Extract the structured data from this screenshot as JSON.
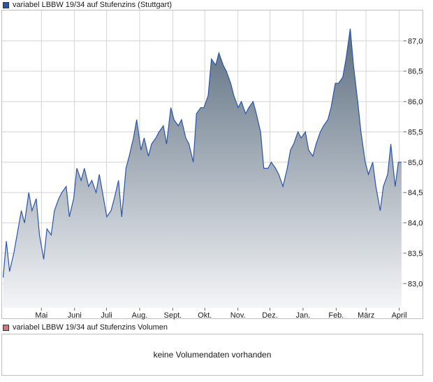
{
  "legend": {
    "price_label": "variabel LBBW 19/34 auf Stufenzins (Stuttgart)",
    "volume_label": "variabel LBBW 19/34 auf Stufenzins Volumen"
  },
  "volume": {
    "message": "keine Volumendaten vorhanden"
  },
  "colors": {
    "line": "#2b55a8",
    "fill_top": "#5c6e80",
    "fill_bottom": "#f4f5f7",
    "price_swatch": "#2b55a8",
    "volume_swatch": "#d9737a",
    "frame": "#bfbfbf",
    "grid": "#d4d4d4"
  },
  "chart_data": {
    "type": "area",
    "title": "",
    "xlabel": "",
    "ylabel": "",
    "x_tick_labels": [
      "Mai",
      "Juni",
      "Juli",
      "Aug.",
      "Sept.",
      "Okt.",
      "Nov.",
      "Dez.",
      "Jan.",
      "Feb.",
      "März",
      "April"
    ],
    "y_ticks": [
      83.0,
      83.5,
      84.0,
      84.5,
      85.0,
      85.5,
      86.0,
      86.5,
      87.0
    ],
    "y_tick_labels": [
      "83,0",
      "83,5",
      "84,0",
      "84,5",
      "85,0",
      "85,5",
      "86,0",
      "86,5",
      "87,0"
    ],
    "ylim": [
      82.6,
      87.5
    ],
    "grid": true,
    "series": [
      {
        "name": "variabel LBBW 19/34 auf Stufenzins (Stuttgart)",
        "points": [
          [
            "2024-04-05",
            83.1
          ],
          [
            "2024-04-08",
            83.7
          ],
          [
            "2024-04-11",
            83.2
          ],
          [
            "2024-04-15",
            83.5
          ],
          [
            "2024-04-18",
            83.8
          ],
          [
            "2024-04-22",
            84.2
          ],
          [
            "2024-04-25",
            84.0
          ],
          [
            "2024-04-29",
            84.5
          ],
          [
            "2024-05-02",
            84.2
          ],
          [
            "2024-05-06",
            84.4
          ],
          [
            "2024-05-09",
            83.8
          ],
          [
            "2024-05-13",
            83.4
          ],
          [
            "2024-05-16",
            83.9
          ],
          [
            "2024-05-20",
            83.8
          ],
          [
            "2024-05-23",
            84.2
          ],
          [
            "2024-05-27",
            84.4
          ],
          [
            "2024-05-30",
            84.5
          ],
          [
            "2024-06-03",
            84.6
          ],
          [
            "2024-06-06",
            84.1
          ],
          [
            "2024-06-10",
            84.4
          ],
          [
            "2024-06-13",
            84.9
          ],
          [
            "2024-06-17",
            84.7
          ],
          [
            "2024-06-20",
            84.9
          ],
          [
            "2024-06-24",
            84.6
          ],
          [
            "2024-06-27",
            84.7
          ],
          [
            "2024-07-01",
            84.5
          ],
          [
            "2024-07-04",
            84.8
          ],
          [
            "2024-07-08",
            84.4
          ],
          [
            "2024-07-11",
            84.1
          ],
          [
            "2024-07-15",
            84.2
          ],
          [
            "2024-07-18",
            84.4
          ],
          [
            "2024-07-22",
            84.7
          ],
          [
            "2024-07-25",
            84.1
          ],
          [
            "2024-07-29",
            84.9
          ],
          [
            "2024-08-01",
            85.1
          ],
          [
            "2024-08-05",
            85.4
          ],
          [
            "2024-08-08",
            85.7
          ],
          [
            "2024-08-12",
            85.2
          ],
          [
            "2024-08-15",
            85.4
          ],
          [
            "2024-08-19",
            85.1
          ],
          [
            "2024-08-22",
            85.3
          ],
          [
            "2024-08-26",
            85.4
          ],
          [
            "2024-08-29",
            85.5
          ],
          [
            "2024-09-02",
            85.6
          ],
          [
            "2024-09-05",
            85.3
          ],
          [
            "2024-09-09",
            85.9
          ],
          [
            "2024-09-12",
            85.7
          ],
          [
            "2024-09-16",
            85.6
          ],
          [
            "2024-09-19",
            85.7
          ],
          [
            "2024-09-23",
            85.4
          ],
          [
            "2024-09-26",
            85.3
          ],
          [
            "2024-09-30",
            85.0
          ],
          [
            "2024-10-03",
            85.8
          ],
          [
            "2024-10-07",
            85.9
          ],
          [
            "2024-10-10",
            85.9
          ],
          [
            "2024-10-14",
            86.1
          ],
          [
            "2024-10-17",
            86.7
          ],
          [
            "2024-10-21",
            86.6
          ],
          [
            "2024-10-24",
            86.8
          ],
          [
            "2024-10-28",
            86.6
          ],
          [
            "2024-10-31",
            86.5
          ],
          [
            "2024-11-04",
            86.3
          ],
          [
            "2024-11-07",
            86.1
          ],
          [
            "2024-11-11",
            85.9
          ],
          [
            "2024-11-14",
            86.0
          ],
          [
            "2024-11-18",
            85.8
          ],
          [
            "2024-11-21",
            85.9
          ],
          [
            "2024-11-25",
            86.0
          ],
          [
            "2024-11-28",
            85.8
          ],
          [
            "2024-12-02",
            85.5
          ],
          [
            "2024-12-05",
            84.9
          ],
          [
            "2024-12-09",
            84.9
          ],
          [
            "2024-12-12",
            85.0
          ],
          [
            "2024-12-16",
            84.9
          ],
          [
            "2024-12-19",
            84.8
          ],
          [
            "2024-12-23",
            84.6
          ],
          [
            "2024-12-27",
            84.9
          ],
          [
            "2024-12-30",
            85.2
          ],
          [
            "2025-01-02",
            85.3
          ],
          [
            "2025-01-06",
            85.5
          ],
          [
            "2025-01-09",
            85.4
          ],
          [
            "2025-01-13",
            85.5
          ],
          [
            "2025-01-16",
            85.2
          ],
          [
            "2025-01-20",
            85.1
          ],
          [
            "2025-01-23",
            85.3
          ],
          [
            "2025-01-27",
            85.5
          ],
          [
            "2025-01-30",
            85.6
          ],
          [
            "2025-02-03",
            85.7
          ],
          [
            "2025-02-06",
            85.9
          ],
          [
            "2025-02-10",
            86.3
          ],
          [
            "2025-02-13",
            86.3
          ],
          [
            "2025-02-17",
            86.4
          ],
          [
            "2025-02-20",
            86.7
          ],
          [
            "2025-02-24",
            87.2
          ],
          [
            "2025-02-27",
            86.6
          ],
          [
            "2025-03-03",
            86.0
          ],
          [
            "2025-03-06",
            85.5
          ],
          [
            "2025-03-10",
            85.0
          ],
          [
            "2025-03-13",
            84.8
          ],
          [
            "2025-03-17",
            85.0
          ],
          [
            "2025-03-20",
            84.6
          ],
          [
            "2025-03-24",
            84.2
          ],
          [
            "2025-03-27",
            84.6
          ],
          [
            "2025-03-31",
            84.8
          ],
          [
            "2025-04-03",
            85.3
          ],
          [
            "2025-04-07",
            84.6
          ],
          [
            "2025-04-10",
            85.0
          ],
          [
            "2025-04-13",
            85.0
          ]
        ]
      }
    ]
  }
}
